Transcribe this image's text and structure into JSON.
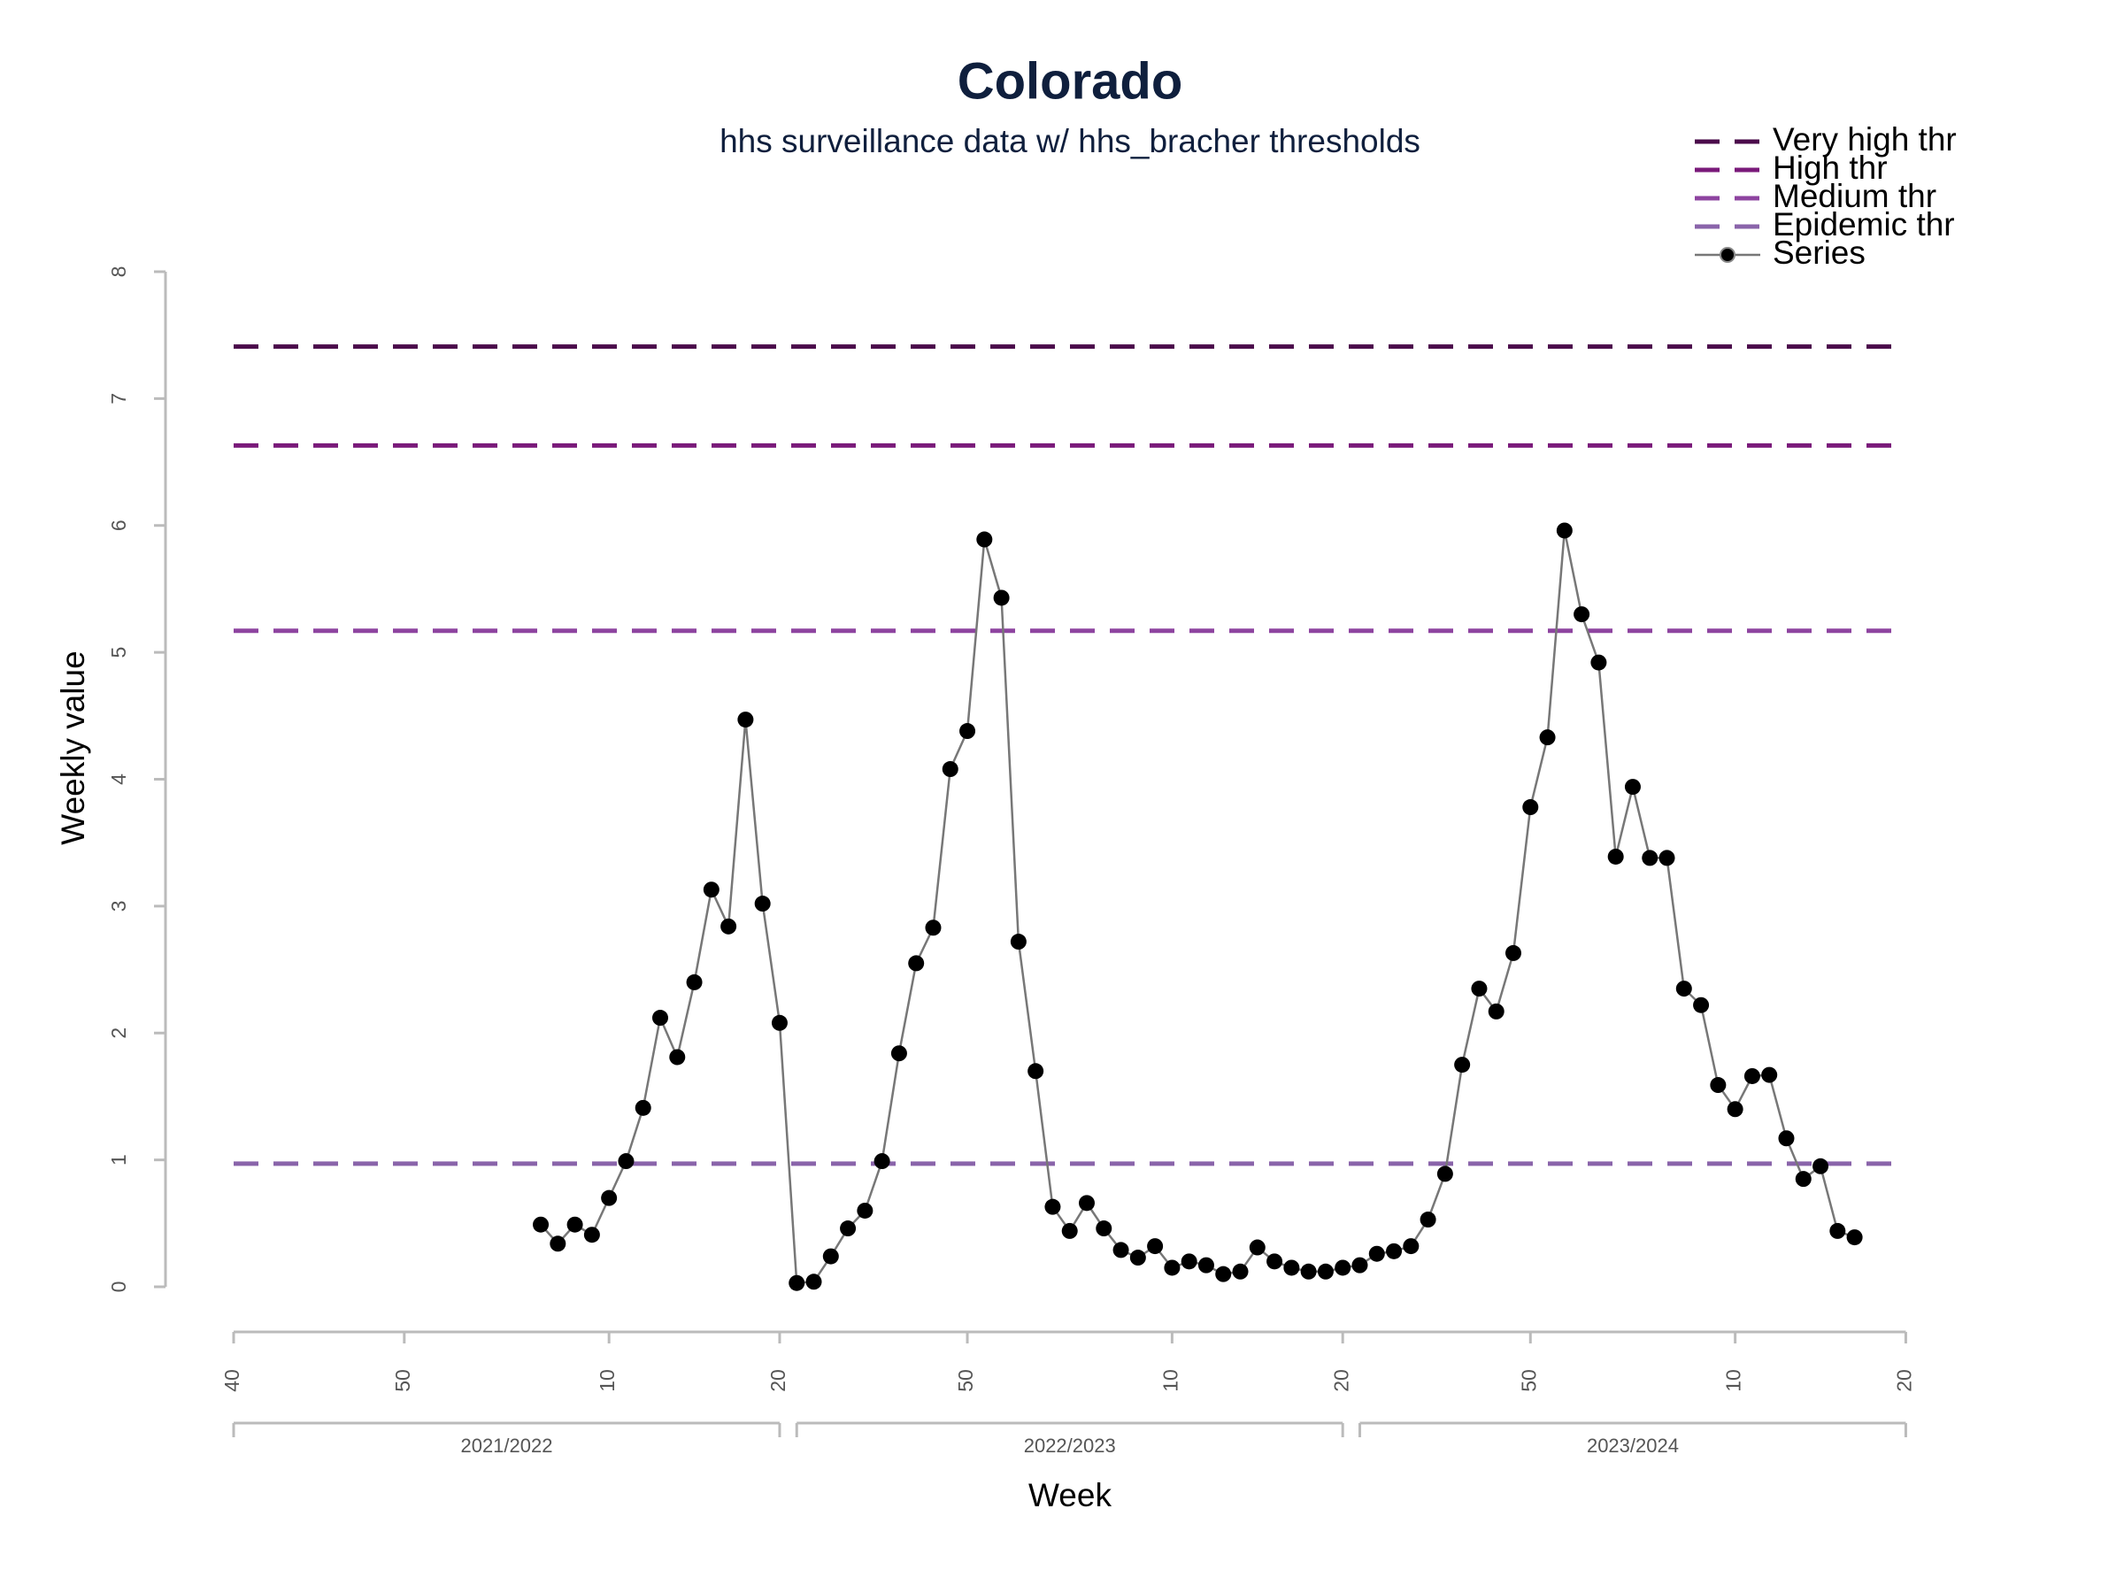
{
  "chart_data": {
    "type": "line",
    "title": "Colorado",
    "subtitle": "hhs surveillance data w/ hhs_bracher thresholds",
    "x_label": "Week",
    "y_label": "Weekly value",
    "categories": [
      "40",
      null,
      null,
      null,
      null,
      null,
      null,
      null,
      null,
      null,
      "50",
      null,
      null,
      null,
      null,
      null,
      null,
      null,
      null,
      null,
      null,
      null,
      "10",
      null,
      null,
      null,
      null,
      null,
      null,
      null,
      null,
      null,
      "20",
      null,
      null,
      null,
      null,
      null,
      null,
      null,
      null,
      null,
      null,
      "50",
      null,
      null,
      null,
      null,
      null,
      null,
      null,
      null,
      null,
      null,
      null,
      "10",
      null,
      null,
      null,
      null,
      null,
      null,
      null,
      null,
      null,
      "20",
      null,
      null,
      null,
      null,
      null,
      null,
      null,
      null,
      null,
      null,
      "50",
      null,
      null,
      null,
      null,
      null,
      null,
      null,
      null,
      null,
      null,
      null,
      "10",
      null,
      null,
      null,
      null,
      null,
      null,
      null,
      null,
      null,
      "20"
    ],
    "seasons": [
      "2021/2022",
      "2022/2023",
      "2023/2024"
    ],
    "series": [
      {
        "name": "Series",
        "color": "#000000",
        "line_color": "#777777",
        "values": [
          null,
          null,
          null,
          null,
          null,
          null,
          null,
          null,
          null,
          null,
          null,
          null,
          null,
          null,
          null,
          null,
          null,
          null,
          0.49,
          0.34,
          0.49,
          0.41,
          0.7,
          0.99,
          1.41,
          2.12,
          1.81,
          2.4,
          3.13,
          2.84,
          4.47,
          3.02,
          2.08,
          0.03,
          0.04,
          0.24,
          0.46,
          0.6,
          0.99,
          1.84,
          2.55,
          2.83,
          4.08,
          4.38,
          5.89,
          5.43,
          2.72,
          1.7,
          0.63,
          0.44,
          0.66,
          0.46,
          0.29,
          0.23,
          0.32,
          0.15,
          0.2,
          0.17,
          0.1,
          0.12,
          0.31,
          0.2,
          0.15,
          0.12,
          0.12,
          0.15,
          0.17,
          0.26,
          0.28,
          0.32,
          0.53,
          0.89,
          1.75,
          2.35,
          2.17,
          2.63,
          3.78,
          4.33,
          5.96,
          5.3,
          4.92,
          3.39,
          3.94,
          3.38,
          3.38,
          2.35,
          2.22,
          1.59,
          1.4,
          1.66,
          1.67,
          1.17,
          0.85,
          0.95,
          0.44,
          0.39,
          null,
          null,
          null
        ]
      }
    ],
    "thresholds": [
      {
        "name": "Very high thr",
        "color": "#4b0c4b",
        "value": 7.41
      },
      {
        "name": "High thr",
        "color": "#7a1a7a",
        "value": 6.63
      },
      {
        "name": "Medium thr",
        "color": "#8e44a0",
        "value": 5.17
      },
      {
        "name": "Epidemic thr",
        "color": "#8a64aa",
        "value": 0.97
      }
    ],
    "ylim": [
      0,
      8
    ],
    "yticks": [
      0,
      1,
      2,
      3,
      4,
      5,
      6,
      7,
      8
    ],
    "legend": "top-right"
  }
}
